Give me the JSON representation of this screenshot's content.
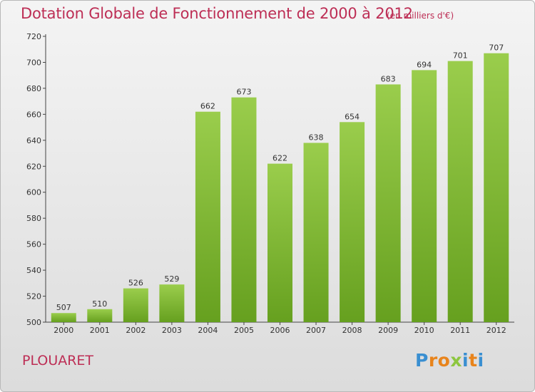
{
  "title": "Dotation Globale de Fonctionnement de 2000 à 2012",
  "unit": "(en milliers d'€)",
  "commune": "PLOUARET",
  "logo": {
    "letters": [
      "P",
      "r",
      "o",
      "x",
      "i",
      "t",
      "i"
    ],
    "colors": [
      "#3a8fd1",
      "#e8841c",
      "#e8841c",
      "#8dc63f",
      "#3a8fd1",
      "#e8841c",
      "#3a8fd1"
    ]
  },
  "chart_data": {
    "type": "bar",
    "categories": [
      "2000",
      "2001",
      "2002",
      "2003",
      "2004",
      "2005",
      "2006",
      "2007",
      "2008",
      "2009",
      "2010",
      "2011",
      "2012"
    ],
    "values": [
      507,
      510,
      526,
      529,
      662,
      673,
      622,
      638,
      654,
      683,
      694,
      701,
      707
    ],
    "ylim": [
      500,
      720
    ],
    "yticks": [
      500,
      520,
      540,
      560,
      580,
      600,
      620,
      640,
      660,
      680,
      700,
      720
    ],
    "grid": false,
    "bar_color_top": "#9acd4c",
    "bar_color_bottom": "#66a01f"
  }
}
